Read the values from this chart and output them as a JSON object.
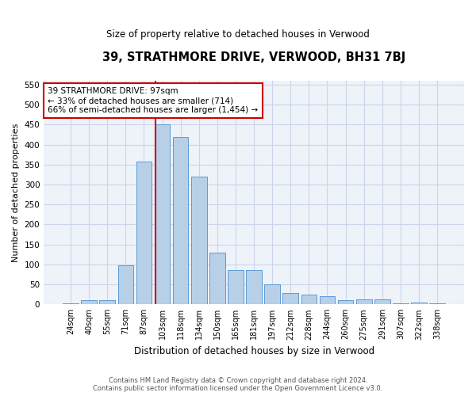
{
  "title": "39, STRATHMORE DRIVE, VERWOOD, BH31 7BJ",
  "subtitle": "Size of property relative to detached houses in Verwood",
  "xlabel": "Distribution of detached houses by size in Verwood",
  "ylabel": "Number of detached properties",
  "categories": [
    "24sqm",
    "40sqm",
    "55sqm",
    "71sqm",
    "87sqm",
    "103sqm",
    "118sqm",
    "134sqm",
    "150sqm",
    "165sqm",
    "181sqm",
    "197sqm",
    "212sqm",
    "228sqm",
    "244sqm",
    "260sqm",
    "275sqm",
    "291sqm",
    "307sqm",
    "322sqm",
    "338sqm"
  ],
  "values": [
    2,
    10,
    10,
    98,
    358,
    450,
    420,
    320,
    130,
    85,
    85,
    50,
    28,
    25,
    20,
    10,
    12,
    12,
    2,
    5,
    2
  ],
  "bar_color": "#b8cfe8",
  "bar_edge_color": "#5b9bd5",
  "background_color": "#eef2f9",
  "grid_color": "#ccd5e8",
  "ylim": [
    0,
    560
  ],
  "yticks": [
    0,
    50,
    100,
    150,
    200,
    250,
    300,
    350,
    400,
    450,
    500,
    550
  ],
  "red_line_color": "#cc0000",
  "annotation_text": "39 STRATHMORE DRIVE: 97sqm\n← 33% of detached houses are smaller (714)\n66% of semi-detached houses are larger (1,454) →",
  "annotation_box_color": "#ffffff",
  "annotation_box_edge": "#cc0000",
  "footer_line1": "Contains HM Land Registry data © Crown copyright and database right 2024.",
  "footer_line2": "Contains public sector information licensed under the Open Government Licence v3.0."
}
